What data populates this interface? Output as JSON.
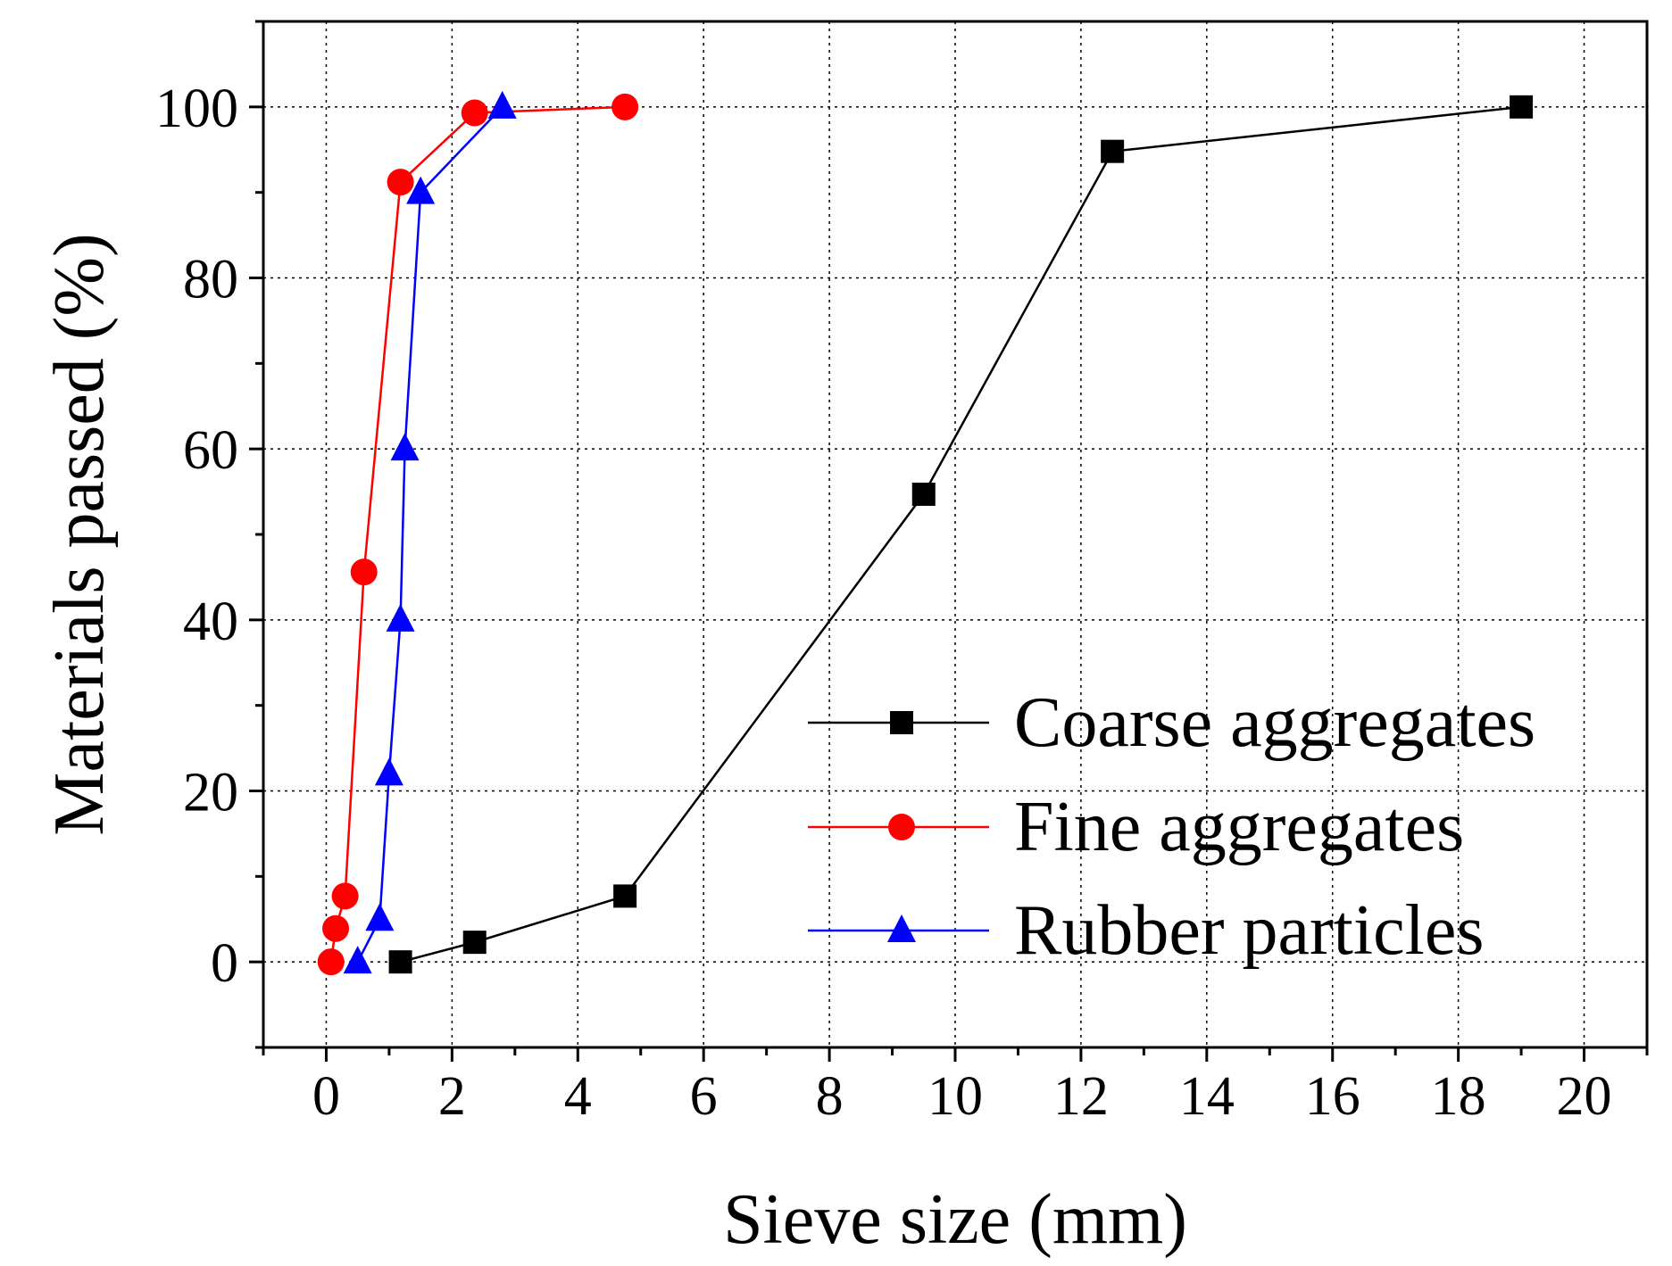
{
  "chart_data": {
    "type": "line",
    "title": "",
    "xlabel": "Sieve size (mm)",
    "ylabel": "Materials passed (%)",
    "xlim": [
      -1,
      21
    ],
    "ylim": [
      -10,
      110
    ],
    "xticks": [
      0,
      2,
      4,
      6,
      8,
      10,
      12,
      14,
      16,
      18,
      20
    ],
    "yticks": [
      0,
      20,
      40,
      60,
      80,
      100
    ],
    "xtick_labels": [
      "0",
      "2",
      "4",
      "6",
      "8",
      "10",
      "12",
      "14",
      "16",
      "18",
      "20"
    ],
    "ytick_labels": [
      "0",
      "20",
      "40",
      "60",
      "80",
      "100"
    ],
    "grid": true,
    "legend_position": "bottom-right",
    "series": [
      {
        "name": "Coarse aggregates",
        "color": "#000000",
        "marker": "square",
        "x": [
          1.18,
          2.36,
          4.75,
          9.5,
          12.5,
          19.0
        ],
        "y": [
          0.0,
          2.3,
          7.7,
          54.7,
          94.8,
          100.0
        ]
      },
      {
        "name": "Fine aggregates",
        "color": "#ff0000",
        "marker": "circle",
        "x": [
          0.075,
          0.15,
          0.3,
          0.6,
          1.18,
          2.36,
          4.75
        ],
        "y": [
          0.0,
          3.9,
          7.7,
          45.6,
          91.2,
          99.3,
          100.0
        ]
      },
      {
        "name": "Rubber particles",
        "color": "#0000ff",
        "marker": "triangle",
        "x": [
          0.5,
          0.85,
          1.0,
          1.18,
          1.25,
          1.5,
          2.8
        ],
        "y": [
          0.0,
          5.0,
          22.0,
          40.0,
          60.0,
          90.0,
          100.0
        ]
      }
    ]
  }
}
